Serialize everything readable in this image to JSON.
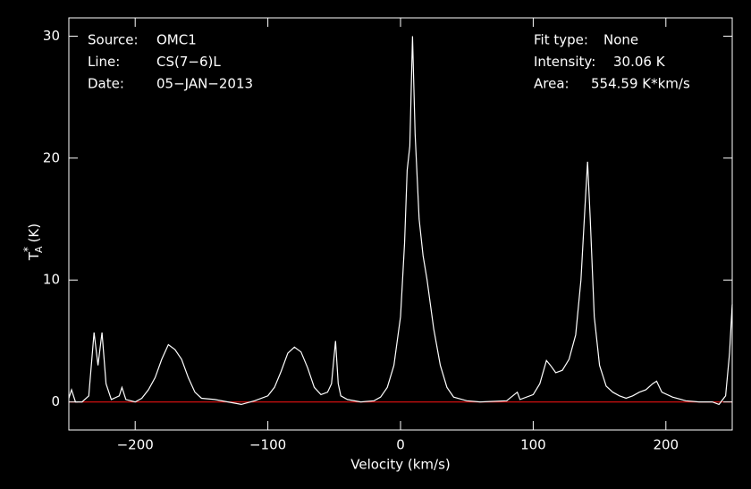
{
  "chart_data": {
    "type": "line",
    "xlabel": "Velocity (km/s)",
    "ylabel": {
      "base": "T",
      "sup": "*",
      "sub": "A",
      "unit": "(K)"
    },
    "annotations_left": [
      {
        "label": "Source:",
        "value": "OMC1"
      },
      {
        "label": "Line:",
        "value": "CS(7−6)L"
      },
      {
        "label": "Date:",
        "value": "05−JAN−2013"
      }
    ],
    "annotations_right": [
      {
        "label": "Fit type:",
        "value": "None"
      },
      {
        "label": "Intensity:",
        "value": "30.06 K"
      },
      {
        "label": "Area:",
        "value": "554.59 K*km/s"
      }
    ],
    "xlim": [
      -250,
      250
    ],
    "ylim": [
      -2.3,
      31.5
    ],
    "xticks": [
      {
        "value": -200,
        "label": "−200"
      },
      {
        "value": -100,
        "label": "−100"
      },
      0,
      100,
      200
    ],
    "yticks": [
      0,
      10,
      20,
      30
    ],
    "color": "#ffffff",
    "baseline_color": "#d01010",
    "x": [
      -250,
      -248,
      -245,
      -240,
      -235,
      -231,
      -228,
      -225,
      -222,
      -218,
      -212,
      -210,
      -207,
      -200,
      -195,
      -190,
      -185,
      -180,
      -175,
      -170,
      -165,
      -160,
      -155,
      -150,
      -140,
      -130,
      -120,
      -110,
      -100,
      -95,
      -90,
      -85,
      -80,
      -75,
      -70,
      -65,
      -60,
      -55,
      -52,
      -49,
      -47,
      -45,
      -40,
      -30,
      -20,
      -15,
      -10,
      -5,
      0,
      3,
      5,
      7,
      9,
      11,
      14,
      17,
      20,
      25,
      30,
      35,
      40,
      50,
      60,
      80,
      88,
      90,
      100,
      105,
      110,
      113,
      117,
      122,
      127,
      132,
      136,
      139,
      141,
      143,
      146,
      150,
      155,
      160,
      165,
      170,
      175,
      180,
      185,
      190,
      193,
      197,
      205,
      215,
      225,
      235,
      240,
      245,
      248,
      250
    ],
    "values": [
      0.3,
      1.0,
      0,
      0,
      0.5,
      5.7,
      3,
      5.7,
      1.5,
      0.2,
      0.5,
      1.2,
      0.2,
      0,
      0.3,
      1,
      2,
      3.5,
      4.7,
      4.3,
      3.5,
      2,
      0.8,
      0.3,
      0.2,
      0,
      -0.2,
      0.1,
      0.5,
      1.2,
      2.5,
      4,
      4.5,
      4.1,
      2.8,
      1.2,
      0.6,
      0.8,
      1.5,
      5,
      1.5,
      0.5,
      0.2,
      0,
      0.1,
      0.4,
      1.2,
      3,
      7,
      13,
      19,
      21,
      30,
      22,
      15,
      12,
      10,
      6,
      3,
      1.2,
      0.4,
      0.1,
      0,
      0.1,
      0.8,
      0.2,
      0.6,
      1.5,
      3.4,
      3.0,
      2.4,
      2.6,
      3.5,
      5.5,
      10,
      16,
      19.7,
      15,
      7,
      3,
      1.3,
      0.8,
      0.5,
      0.3,
      0.5,
      0.8,
      1.0,
      1.5,
      1.7,
      0.8,
      0.4,
      0.1,
      0,
      0,
      -0.2,
      0.5,
      4,
      8
    ]
  }
}
